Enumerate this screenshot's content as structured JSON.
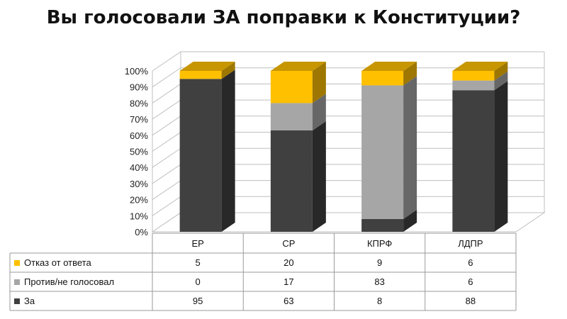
{
  "chart_data": {
    "type": "bar",
    "stacked": true,
    "three_d": true,
    "title": "Вы голосовали ЗА поправки к Конституции?",
    "categories": [
      "ЕР",
      "СР",
      "КПРФ",
      "ЛДПР"
    ],
    "ylim": [
      0,
      100
    ],
    "yticks": [
      "0%",
      "10%",
      "20%",
      "30%",
      "40%",
      "50%",
      "60%",
      "70%",
      "80%",
      "90%",
      "100%"
    ],
    "grid": true,
    "legend": "data-table",
    "series": [
      {
        "name": "За",
        "values": [
          95,
          63,
          8,
          88
        ],
        "color": "#404040"
      },
      {
        "name": "Против/не голосовал",
        "values": [
          0,
          17,
          83,
          6
        ],
        "color": "#a6a6a6"
      },
      {
        "name": "Отказ от ответа",
        "values": [
          5,
          20,
          9,
          6
        ],
        "color": "#ffc000"
      }
    ]
  }
}
